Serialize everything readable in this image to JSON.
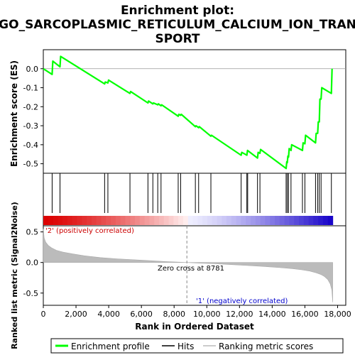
{
  "chart_data": {
    "type": "line",
    "title": [
      "Enrichment plot:",
      "GO_SARCOPLASMIC_RETICULUM_CALCIUM_ION_TRAN",
      "SPORT"
    ],
    "top_panel": {
      "ylabel": "Enrichment score (ES)",
      "ylim": [
        -0.55,
        0.1
      ],
      "yticks": [
        "0.0",
        "-0.1",
        "-0.2",
        "-0.3",
        "-0.4",
        "-0.5"
      ],
      "ytick_values": [
        0.0,
        -0.1,
        -0.2,
        -0.3,
        -0.4,
        -0.5
      ],
      "series": [
        {
          "name": "Enrichment profile",
          "color": "#00ff00",
          "x": [
            0,
            540,
            580,
            1020,
            1060,
            3750,
            3790,
            3950,
            3990,
            5300,
            5340,
            6400,
            6440,
            6700,
            6740,
            7000,
            7040,
            7200,
            7240,
            8250,
            8290,
            8400,
            8440,
            9300,
            9340,
            9500,
            9540,
            10250,
            10290,
            12100,
            12140,
            12450,
            12490,
            13100,
            13140,
            13250,
            13290,
            14850,
            14890,
            14920,
            14960,
            15000,
            15040,
            15150,
            15190,
            15850,
            15890,
            16000,
            16040,
            16650,
            16690,
            16780,
            16820,
            16880,
            16920,
            16990,
            17030,
            17620,
            17660
          ],
          "y": [
            0.0,
            -0.03,
            0.04,
            0.01,
            0.065,
            -0.08,
            -0.07,
            -0.075,
            -0.06,
            -0.13,
            -0.12,
            -0.18,
            -0.17,
            -0.185,
            -0.18,
            -0.19,
            -0.185,
            -0.195,
            -0.19,
            -0.25,
            -0.24,
            -0.245,
            -0.24,
            -0.305,
            -0.3,
            -0.31,
            -0.305,
            -0.355,
            -0.35,
            -0.455,
            -0.44,
            -0.455,
            -0.43,
            -0.47,
            -0.44,
            -0.445,
            -0.425,
            -0.525,
            -0.49,
            -0.495,
            -0.46,
            -0.465,
            -0.42,
            -0.43,
            -0.4,
            -0.43,
            -0.39,
            -0.395,
            -0.35,
            -0.39,
            -0.34,
            -0.34,
            -0.28,
            -0.28,
            -0.16,
            -0.16,
            -0.1,
            -0.13,
            0.0
          ]
        }
      ],
      "hits_label": "Hits",
      "hits": [
        540,
        1020,
        3750,
        3950,
        5300,
        6400,
        6700,
        7000,
        7200,
        8250,
        8400,
        9300,
        9500,
        10250,
        12100,
        12450,
        12500,
        13100,
        13250,
        14850,
        14920,
        15000,
        15150,
        15850,
        16000,
        16650,
        16780,
        16880,
        16990,
        17620
      ]
    },
    "bottom_panel": {
      "ylabel": "Ranked list metric (Signal2Noise)",
      "ylim": [
        -0.7,
        0.6
      ],
      "yticks": [
        "0.5",
        "0.0",
        "-0.5"
      ],
      "ytick_values": [
        0.5,
        0.0,
        -0.5
      ],
      "series_name": "Ranking metric scores",
      "metric_x": [
        0,
        50,
        150,
        300,
        500,
        800,
        1200,
        1800,
        2500,
        3500,
        4500,
        5500,
        6500,
        7500,
        8781,
        9500,
        10500,
        11500,
        12500,
        13500,
        14500,
        15200,
        15800,
        16300,
        16700,
        17000,
        17200,
        17400,
        17550,
        17650,
        17700
      ],
      "metric_y": [
        0.55,
        0.4,
        0.33,
        0.28,
        0.24,
        0.2,
        0.17,
        0.14,
        0.11,
        0.08,
        0.06,
        0.045,
        0.03,
        0.015,
        0.0,
        -0.01,
        -0.02,
        -0.035,
        -0.05,
        -0.065,
        -0.085,
        -0.1,
        -0.12,
        -0.14,
        -0.17,
        -0.2,
        -0.23,
        -0.28,
        -0.35,
        -0.45,
        -0.65
      ],
      "zero_cross_label": "Zero cross at 8781",
      "zero_cross": 8781,
      "pos_label": "'2' (positively correlated)",
      "neg_label": "'1' (negatively correlated)",
      "pos_color": "#cc0000",
      "neg_color": "#0000cc"
    },
    "xlabel": "Rank in Ordered Dataset",
    "xlim": [
      0,
      18500
    ],
    "xticks": [
      "0",
      "2,000",
      "4,000",
      "6,000",
      "8,000",
      "10,000",
      "12,000",
      "14,000",
      "16,000",
      "18,000"
    ],
    "xtick_values": [
      0,
      2000,
      4000,
      6000,
      8000,
      10000,
      12000,
      14000,
      16000,
      18000
    ],
    "n_genes": 17700,
    "legend": {
      "placement": "bottom",
      "items": [
        "Enrichment profile",
        "Hits",
        "Ranking metric scores"
      ]
    }
  }
}
